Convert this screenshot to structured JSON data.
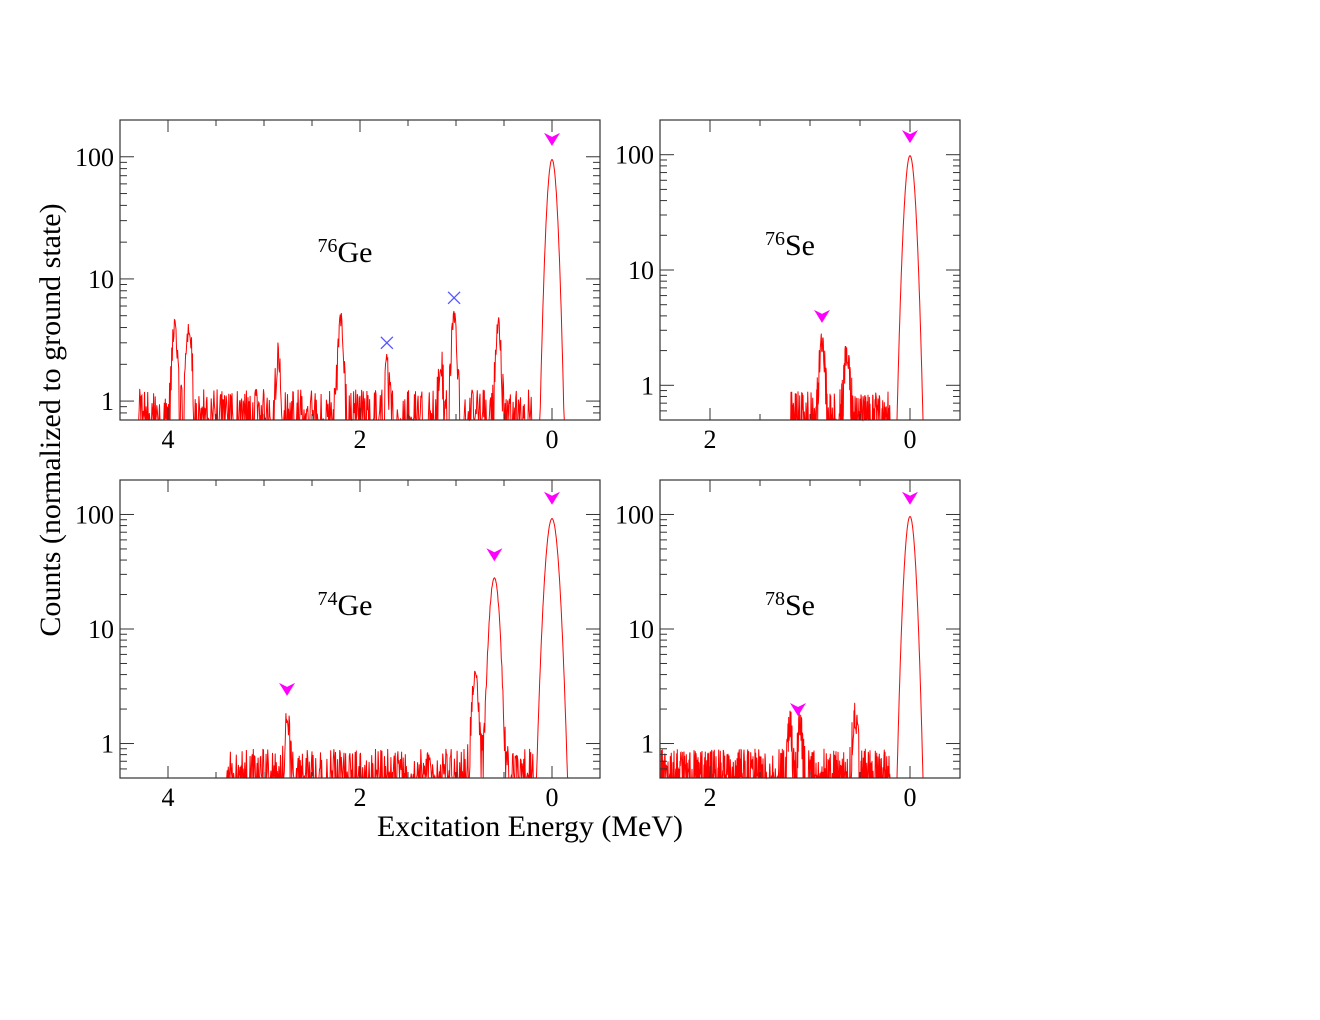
{
  "figure": {
    "ylabel": "Counts (normalized to ground state)",
    "xlabel": "Excitation Energy (MeV)"
  },
  "colors": {
    "spectrum": "#ff0000",
    "arrow_marker": "#ff00ff",
    "cross_marker": "#5555ff",
    "frame": "#333333"
  },
  "chart_data": [
    {
      "type": "line",
      "label_mass": "76",
      "label_element": "Ge",
      "xlim": [
        4.5,
        -0.5
      ],
      "ylim": [
        0.7,
        200
      ],
      "yscale": "log",
      "x_ticks": [
        4,
        2,
        0
      ],
      "x_tick_labels": [
        "4",
        "2",
        "0"
      ],
      "y_ticks": [
        1,
        10,
        100
      ],
      "y_tick_labels": [
        "1",
        "10",
        "100"
      ],
      "peaks": [
        {
          "x": 0.0,
          "y": 95,
          "w": 0.04
        },
        {
          "x": 0.56,
          "y": 3.7,
          "w": 0.025
        },
        {
          "x": 1.02,
          "y": 4.4,
          "w": 0.025
        },
        {
          "x": 1.16,
          "y": 1.8,
          "w": 0.02
        },
        {
          "x": 1.72,
          "y": 1.4,
          "w": 0.02
        },
        {
          "x": 2.2,
          "y": 4.1,
          "w": 0.025
        },
        {
          "x": 2.85,
          "y": 1.9,
          "w": 0.025
        },
        {
          "x": 3.78,
          "y": 3.6,
          "w": 0.025
        },
        {
          "x": 3.93,
          "y": 3.6,
          "w": 0.025
        }
      ],
      "noise_range": [
        0.2,
        4.3
      ],
      "arrows": [
        {
          "x": 0.0,
          "y": 140
        }
      ],
      "crosses": [
        {
          "x": 1.72,
          "y": 3.0
        },
        {
          "x": 1.02,
          "y": 7.0
        }
      ]
    },
    {
      "type": "line",
      "label_mass": "76",
      "label_element": "Se",
      "xlim": [
        2.5,
        -0.5
      ],
      "ylim": [
        0.5,
        200
      ],
      "yscale": "log",
      "x_ticks": [
        2,
        0
      ],
      "x_tick_labels": [
        "2",
        "0"
      ],
      "y_ticks": [
        1,
        10,
        100
      ],
      "y_tick_labels": [
        "1",
        "10",
        "100"
      ],
      "peaks": [
        {
          "x": 0.0,
          "y": 98,
          "w": 0.04
        },
        {
          "x": 0.63,
          "y": 1.6,
          "w": 0.025
        },
        {
          "x": 0.88,
          "y": 2.0,
          "w": 0.025
        }
      ],
      "noise_range": [
        0.2,
        1.2
      ],
      "arrows": [
        {
          "x": 0.0,
          "y": 145
        },
        {
          "x": 0.88,
          "y": 4.0
        }
      ],
      "crosses": []
    },
    {
      "type": "line",
      "label_mass": "74",
      "label_element": "Ge",
      "xlim": [
        4.5,
        -0.5
      ],
      "ylim": [
        0.5,
        200
      ],
      "yscale": "log",
      "x_ticks": [
        4,
        2,
        0
      ],
      "x_tick_labels": [
        "4",
        "2",
        "0"
      ],
      "y_ticks": [
        1,
        10,
        100
      ],
      "y_tick_labels": [
        "1",
        "10",
        "100"
      ],
      "peaks": [
        {
          "x": 0.0,
          "y": 92,
          "w": 0.05
        },
        {
          "x": 0.6,
          "y": 28,
          "w": 0.04
        },
        {
          "x": 0.8,
          "y": 3.5,
          "w": 0.03
        },
        {
          "x": 2.76,
          "y": 1.6,
          "w": 0.02
        }
      ],
      "noise_range": [
        0.2,
        3.4
      ],
      "arrows": [
        {
          "x": 0.0,
          "y": 140
        },
        {
          "x": 0.6,
          "y": 45
        },
        {
          "x": 2.76,
          "y": 3.0
        }
      ],
      "crosses": []
    },
    {
      "type": "line",
      "label_mass": "78",
      "label_element": "Se",
      "xlim": [
        2.5,
        -0.5
      ],
      "ylim": [
        0.5,
        200
      ],
      "yscale": "log",
      "x_ticks": [
        2,
        0
      ],
      "x_tick_labels": [
        "2",
        "0"
      ],
      "y_ticks": [
        1,
        10,
        100
      ],
      "y_tick_labels": [
        "1",
        "10",
        "100"
      ],
      "peaks": [
        {
          "x": 0.0,
          "y": 96,
          "w": 0.04
        },
        {
          "x": 0.55,
          "y": 1.4,
          "w": 0.025
        },
        {
          "x": 1.1,
          "y": 1.2,
          "w": 0.02
        },
        {
          "x": 1.2,
          "y": 1.2,
          "w": 0.02
        }
      ],
      "noise_range": [
        0.2,
        2.5
      ],
      "arrows": [
        {
          "x": 0.0,
          "y": 140
        },
        {
          "x": 1.12,
          "y": 2.0
        }
      ],
      "crosses": []
    }
  ]
}
